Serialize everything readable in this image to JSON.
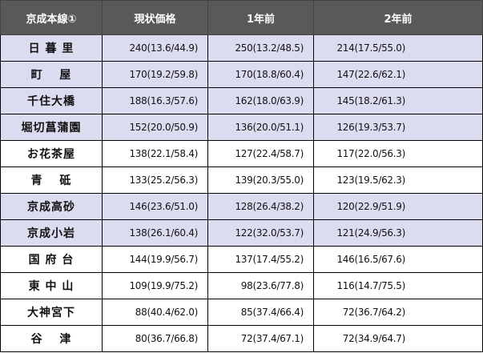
{
  "colors": {
    "header_bg": "#595959",
    "highlight_row": "#dcdcf0"
  },
  "header": [
    "京成本線①",
    "現状価格",
    "1年前",
    "2年前"
  ],
  "rows": [
    {
      "name": "日 暮 里",
      "highlight": true,
      "values": [
        "240(13.6/44.9)",
        "250(13.2/48.5)",
        "214(17.5/55.0)"
      ]
    },
    {
      "name": "町　 屋",
      "highlight": true,
      "values": [
        "170(19.2/59.8)",
        "170(18.8/60.4)",
        "147(22.6/62.1)"
      ]
    },
    {
      "name": "千住大橋",
      "highlight": true,
      "values": [
        "188(16.3/57.6)",
        "162(18.0/63.9)",
        "145(18.2/61.3)"
      ]
    },
    {
      "name": "堀切菖蒲園",
      "highlight": true,
      "values": [
        "152(20.0/50.9)",
        "136(20.0/51.1)",
        "126(19.3/53.7)"
      ]
    },
    {
      "name": "お花茶屋",
      "highlight": false,
      "values": [
        "138(22.1/58.4)",
        "127(22.4/58.7)",
        "117(22.0/56.3)"
      ]
    },
    {
      "name": "青　 砥",
      "highlight": false,
      "values": [
        "133(25.2/56.3)",
        "139(20.3/55.0)",
        "123(19.5/62.3)"
      ]
    },
    {
      "name": "京成高砂",
      "highlight": true,
      "values": [
        "146(23.6/51.0)",
        "128(26.4/38.2)",
        "120(22.9/51.9)"
      ]
    },
    {
      "name": "京成小岩",
      "highlight": true,
      "values": [
        "138(26.1/60.4)",
        "122(32.0/53.7)",
        "121(24.9/56.3)"
      ]
    },
    {
      "name": "国 府 台",
      "highlight": false,
      "values": [
        "144(19.9/56.7)",
        "137(17.4/55.2)",
        "146(16.5/67.6)"
      ]
    },
    {
      "name": "東 中 山",
      "highlight": false,
      "values": [
        "109(19.9/75.2)",
        "98(23.6/77.8)",
        "116(14.7/75.5)"
      ]
    },
    {
      "name": "大神宮下",
      "highlight": false,
      "values": [
        "88(40.4/62.0)",
        "85(37.4/66.4)",
        "72(36.7/64.2)"
      ]
    },
    {
      "name": "谷　 津",
      "highlight": false,
      "values": [
        "80(36.7/66.8)",
        "72(37.4/67.1)",
        "72(34.9/64.7)"
      ]
    }
  ]
}
